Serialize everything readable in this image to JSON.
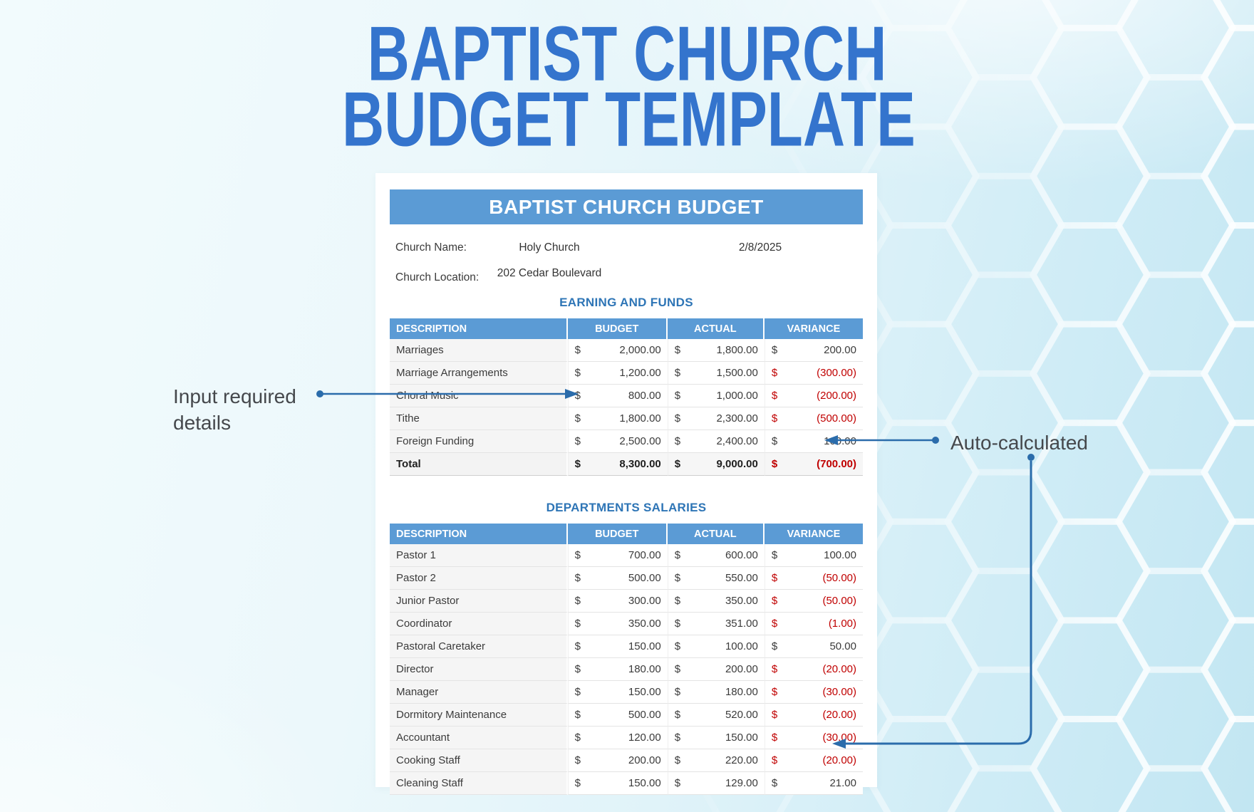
{
  "page_title": {
    "line1": "BAPTIST CHURCH",
    "line2": "BUDGET TEMPLATE"
  },
  "document": {
    "banner_title": "BAPTIST CHURCH BUDGET",
    "fields": {
      "church_name_label": "Church Name:",
      "church_name_value": "Holy Church",
      "date_value": "2/8/2025",
      "church_location_label": "Church Location:",
      "church_location_value": "202 Cedar Boulevard"
    }
  },
  "annotations": {
    "input_required_label": "Input required details",
    "auto_calculated_label": "Auto-calculated"
  },
  "currency_symbol": "$",
  "tables": [
    {
      "title": "EARNING AND FUNDS",
      "columns": [
        "DESCRIPTION",
        "BUDGET",
        "ACTUAL",
        "VARIANCE"
      ],
      "rows": [
        {
          "description": "Marriages",
          "budget": "2,000.00",
          "actual": "1,800.00",
          "variance": "200.00",
          "variance_negative": false
        },
        {
          "description": "Marriage Arrangements",
          "budget": "1,200.00",
          "actual": "1,500.00",
          "variance": "(300.00)",
          "variance_negative": true
        },
        {
          "description": "Choral Music",
          "budget": "800.00",
          "actual": "1,000.00",
          "variance": "(200.00)",
          "variance_negative": true
        },
        {
          "description": "Tithe",
          "budget": "1,800.00",
          "actual": "2,300.00",
          "variance": "(500.00)",
          "variance_negative": true
        },
        {
          "description": "Foreign Funding",
          "budget": "2,500.00",
          "actual": "2,400.00",
          "variance": "100.00",
          "variance_negative": false
        }
      ],
      "total_row": {
        "description": "Total",
        "budget": "8,300.00",
        "actual": "9,000.00",
        "variance": "(700.00)",
        "variance_negative": true
      }
    },
    {
      "title": "DEPARTMENTS SALARIES",
      "columns": [
        "DESCRIPTION",
        "BUDGET",
        "ACTUAL",
        "VARIANCE"
      ],
      "rows": [
        {
          "description": "Pastor 1",
          "budget": "700.00",
          "actual": "600.00",
          "variance": "100.00",
          "variance_negative": false
        },
        {
          "description": "Pastor 2",
          "budget": "500.00",
          "actual": "550.00",
          "variance": "(50.00)",
          "variance_negative": true
        },
        {
          "description": "Junior Pastor",
          "budget": "300.00",
          "actual": "350.00",
          "variance": "(50.00)",
          "variance_negative": true
        },
        {
          "description": "Coordinator",
          "budget": "350.00",
          "actual": "351.00",
          "variance": "(1.00)",
          "variance_negative": true
        },
        {
          "description": "Pastoral Caretaker",
          "budget": "150.00",
          "actual": "100.00",
          "variance": "50.00",
          "variance_negative": false
        },
        {
          "description": "Director",
          "budget": "180.00",
          "actual": "200.00",
          "variance": "(20.00)",
          "variance_negative": true
        },
        {
          "description": "Manager",
          "budget": "150.00",
          "actual": "180.00",
          "variance": "(30.00)",
          "variance_negative": true
        },
        {
          "description": "Dormitory Maintenance",
          "budget": "500.00",
          "actual": "520.00",
          "variance": "(20.00)",
          "variance_negative": true
        },
        {
          "description": "Accountant",
          "budget": "120.00",
          "actual": "150.00",
          "variance": "(30.00)",
          "variance_negative": true
        },
        {
          "description": "Cooking Staff",
          "budget": "200.00",
          "actual": "220.00",
          "variance": "(20.00)",
          "variance_negative": true
        },
        {
          "description": "Cleaning Staff",
          "budget": "150.00",
          "actual": "129.00",
          "variance": "21.00",
          "variance_negative": false
        }
      ],
      "total_row": null
    }
  ],
  "colors": {
    "title_blue": "#3474cd",
    "banner_blue": "#5b9bd5",
    "heading_blue": "#2e75b6",
    "negative_red": "#c00000",
    "arrow_blue": "#2b6cab",
    "background_cyan": "#c2e6f2"
  }
}
